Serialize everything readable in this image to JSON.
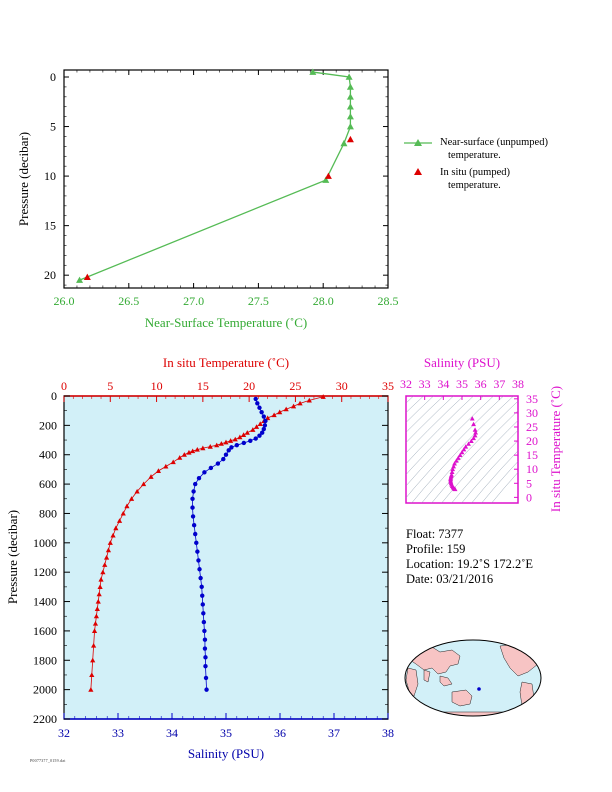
{
  "top_chart": {
    "xlabel": "Near-Surface Temperature (˚C)",
    "ylabel": "Pressure (decibar)",
    "xlim": [
      26.0,
      28.5
    ],
    "ylim": [
      0,
      22
    ],
    "xticks": [
      "26.0",
      "26.5",
      "27.0",
      "27.5",
      "28.0",
      "28.5"
    ],
    "yticks": [
      "0",
      "5",
      "10",
      "15",
      "20"
    ],
    "legend": {
      "unpumped_line1": "Near-surface (unpumped)",
      "unpumped_line2": "temperature.",
      "pumped_line1": "In situ (pumped)",
      "pumped_line2": "temperature."
    }
  },
  "main_chart": {
    "top_xlabel": "In situ Temperature (˚C)",
    "bottom_xlabel": "Salinity (PSU)",
    "ylabel": "Pressure (decibar)",
    "temp_ticks": [
      "0",
      "5",
      "10",
      "15",
      "20",
      "25",
      "30",
      "35"
    ],
    "sal_ticks": [
      "32",
      "33",
      "34",
      "35",
      "36",
      "37",
      "38"
    ],
    "pres_ticks": [
      "0",
      "200",
      "400",
      "600",
      "800",
      "1000",
      "1200",
      "1400",
      "1600",
      "1800",
      "2000",
      "2200"
    ]
  },
  "ts_chart": {
    "xlabel": "Salinity (PSU)",
    "ylabel": "In situ Temperature (˚C)",
    "xticks": [
      "32",
      "33",
      "34",
      "35",
      "36",
      "37",
      "38"
    ],
    "yticks": [
      "0",
      "5",
      "10",
      "15",
      "20",
      "25",
      "30",
      "35"
    ]
  },
  "info": {
    "float": "Float:  7377",
    "profile": "Profile:  159",
    "location": "Location:  19.2˚S  172.2˚E",
    "date": "Date:  03/21/2016"
  },
  "footer": "P0077377_0159.dat",
  "colors": {
    "near_surface": "#55bb55",
    "insitu": "#dd0000",
    "salinity": "#0000cc",
    "ts": "#dd11cc",
    "panel_bg": "#d2f0f8"
  },
  "chart_data": [
    {
      "type": "line",
      "title": "",
      "xlabel": "Near-Surface Temperature (˚C)",
      "ylabel": "Pressure (decibar)",
      "xlim": [
        26.0,
        28.5
      ],
      "ylim": [
        22,
        0
      ],
      "series": [
        {
          "name": "Near-surface (unpumped) temperature.",
          "x": [
            27.92,
            28.2,
            28.21,
            28.21,
            28.21,
            28.21,
            28.21,
            28.16,
            28.02,
            26.12
          ],
          "y": [
            -0.5,
            0.0,
            1.0,
            2.0,
            3.0,
            4.0,
            5.0,
            6.7,
            10.4,
            20.5
          ]
        },
        {
          "name": "In situ (pumped) temperature.",
          "x": [
            28.21,
            28.04,
            26.18
          ],
          "y": [
            6.3,
            10.0,
            20.2
          ]
        }
      ]
    },
    {
      "type": "scatter",
      "title": "",
      "ylabel": "Pressure (decibar)",
      "ylim": [
        2200,
        0
      ],
      "series": [
        {
          "name": "In situ Temperature (˚C)",
          "x": [
            28.0,
            26.5,
            25.5,
            24.8,
            24.0,
            23.3,
            22.7,
            22.0,
            21.6,
            21.2,
            20.8,
            20.4,
            19.8,
            19.4,
            19.0,
            18.5,
            18.0,
            17.5,
            17.0,
            16.5,
            15.8,
            15.0,
            14.4,
            13.9,
            13.5,
            13.0,
            12.5,
            11.8,
            11.0,
            10.2,
            9.4,
            8.6,
            7.9,
            7.3,
            6.8,
            6.4,
            6.0,
            5.6,
            5.3,
            5.0,
            4.8,
            4.6,
            4.4,
            4.2,
            4.0,
            3.9,
            3.8,
            3.7,
            3.6,
            3.5,
            3.4,
            3.3,
            3.2,
            3.1,
            3.0,
            2.9
          ],
          "y": [
            5,
            30,
            50,
            70,
            90,
            110,
            130,
            150,
            170,
            190,
            210,
            230,
            250,
            265,
            280,
            295,
            305,
            315,
            325,
            335,
            345,
            355,
            365,
            375,
            385,
            400,
            420,
            450,
            480,
            510,
            550,
            600,
            650,
            700,
            750,
            800,
            850,
            900,
            950,
            1000,
            1050,
            1100,
            1150,
            1200,
            1250,
            1300,
            1350,
            1400,
            1450,
            1500,
            1550,
            1600,
            1700,
            1800,
            1900,
            2000
          ]
        },
        {
          "name": "Salinity (PSU)",
          "x": [
            35.55,
            35.58,
            35.62,
            35.66,
            35.7,
            35.73,
            35.72,
            35.7,
            35.67,
            35.62,
            35.55,
            35.45,
            35.33,
            35.2,
            35.1,
            35.05,
            35.0,
            34.95,
            34.85,
            34.72,
            34.6,
            34.5,
            34.43,
            34.4,
            34.38,
            34.38,
            34.39,
            34.41,
            34.43,
            34.45,
            34.47,
            34.49,
            34.51,
            34.53,
            34.55,
            34.56,
            34.57,
            34.58,
            34.59,
            34.6,
            34.61,
            34.61,
            34.62,
            34.62,
            34.63,
            34.64
          ],
          "y": [
            20,
            50,
            80,
            110,
            140,
            170,
            200,
            225,
            250,
            270,
            290,
            305,
            320,
            335,
            350,
            370,
            400,
            430,
            460,
            490,
            520,
            560,
            600,
            650,
            700,
            760,
            820,
            880,
            940,
            1000,
            1060,
            1120,
            1180,
            1240,
            1300,
            1360,
            1420,
            1480,
            1540,
            1600,
            1660,
            1720,
            1780,
            1840,
            1920,
            2000
          ]
        }
      ]
    },
    {
      "type": "scatter",
      "title": "",
      "xlabel": "Salinity (PSU)",
      "ylabel": "In situ Temperature (˚C)",
      "xlim": [
        32,
        38
      ],
      "ylim": [
        -2,
        36
      ],
      "series": [
        {
          "name": "T-S",
          "x": [
            35.55,
            35.62,
            35.7,
            35.73,
            35.7,
            35.62,
            35.5,
            35.35,
            35.2,
            35.1,
            35.0,
            34.9,
            34.8,
            34.7,
            34.6,
            34.55,
            34.5,
            34.47,
            34.44,
            34.42,
            34.4,
            34.39,
            34.39,
            34.4,
            34.42,
            34.45,
            34.48,
            34.52,
            34.56,
            34.6,
            34.63
          ],
          "y": [
            28.0,
            26.0,
            24.0,
            23.0,
            22.0,
            21.0,
            20.0,
            19.0,
            18.0,
            17.0,
            16.0,
            15.0,
            14.0,
            13.0,
            12.0,
            11.0,
            10.0,
            9.0,
            8.0,
            7.5,
            7.0,
            6.5,
            6.0,
            5.5,
            5.0,
            4.5,
            4.0,
            3.6,
            3.3,
            3.0,
            2.9
          ]
        }
      ]
    }
  ]
}
